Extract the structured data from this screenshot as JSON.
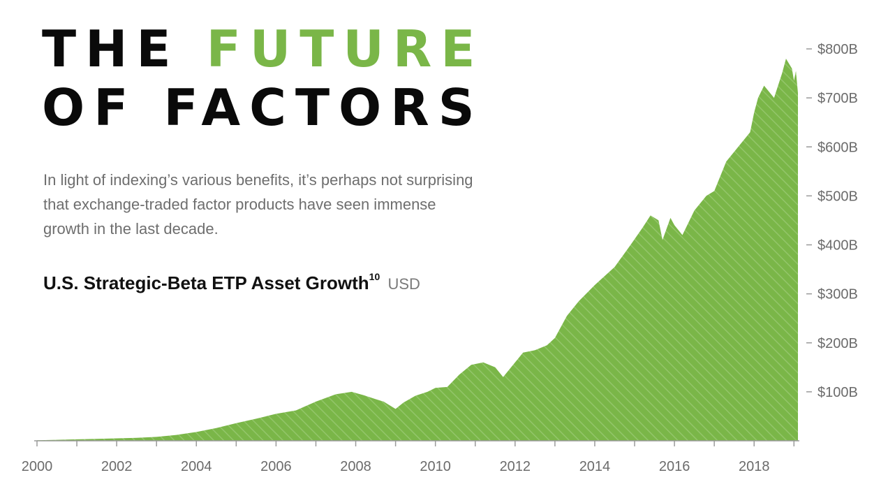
{
  "title": {
    "line1_prefix": "THE",
    "line1_accent": "FUTURE",
    "line2": "OF FACTORS"
  },
  "intro_text": "In light of indexing’s various benefits, it’s perhaps not surprising that exchange-traded factor products have seen immense growth in the last decade.",
  "chart_heading": {
    "text": "U.S. Strategic-Beta ETP Asset Growth",
    "superscript": "10",
    "unit": "USD"
  },
  "colors": {
    "accent": "#7ab648",
    "area_fill": "#7ab648",
    "area_stripe": "#93c56a",
    "title_text": "#0a0a0a",
    "axis": "#9a9a9a",
    "muted_text": "#6e6e6e"
  },
  "chart_data": {
    "type": "area",
    "title": "U.S. Strategic-Beta ETP Asset Growth",
    "xlabel": "",
    "ylabel": "",
    "xlim": [
      2000,
      2019.1
    ],
    "ylim": [
      0,
      800
    ],
    "x_ticks": [
      2000,
      2001,
      2002,
      2003,
      2004,
      2005,
      2006,
      2007,
      2008,
      2009,
      2010,
      2011,
      2012,
      2013,
      2014,
      2015,
      2016,
      2017,
      2018,
      2019
    ],
    "x_tick_labels": [
      "2000",
      "2002",
      "2004",
      "2006",
      "2008",
      "2010",
      "2012",
      "2014",
      "2016",
      "2018"
    ],
    "x_tick_label_values": [
      2000,
      2002,
      2004,
      2006,
      2008,
      2010,
      2012,
      2014,
      2016,
      2018
    ],
    "y_ticks": [
      100,
      200,
      300,
      400,
      500,
      600,
      700,
      800
    ],
    "y_tick_labels": [
      "$100B",
      "$200B",
      "$300B",
      "$400B",
      "$500B",
      "$600B",
      "$700B",
      "$800B"
    ],
    "grid": false,
    "series": [
      {
        "x": [
          2000.0,
          2000.5,
          2001.0,
          2001.5,
          2002.0,
          2002.5,
          2003.0,
          2003.5,
          2004.0,
          2004.5,
          2005.0,
          2005.5,
          2006.0,
          2006.5,
          2007.0,
          2007.5,
          2007.9,
          2008.2,
          2008.5,
          2008.7,
          2009.0,
          2009.2,
          2009.5,
          2009.8,
          2010.0,
          2010.3,
          2010.6,
          2010.9,
          2011.2,
          2011.5,
          2011.7,
          2011.9,
          2012.2,
          2012.5,
          2012.8,
          2013.0,
          2013.3,
          2013.6,
          2014.0,
          2014.5,
          2014.9,
          2015.2,
          2015.4,
          2015.6,
          2015.7,
          2015.9,
          2016.0,
          2016.2,
          2016.5,
          2016.8,
          2017.0,
          2017.3,
          2017.6,
          2017.9,
          2018.0,
          2018.1,
          2018.25,
          2018.5,
          2018.7,
          2018.8,
          2018.95,
          2019.0,
          2019.05,
          2019.1
        ],
        "values": [
          1,
          2,
          3,
          4,
          5,
          6,
          8,
          12,
          18,
          26,
          36,
          45,
          55,
          62,
          80,
          95,
          100,
          93,
          85,
          80,
          65,
          78,
          92,
          100,
          108,
          110,
          135,
          155,
          160,
          150,
          130,
          150,
          180,
          185,
          195,
          210,
          255,
          285,
          318,
          355,
          400,
          435,
          460,
          450,
          410,
          455,
          440,
          420,
          470,
          500,
          510,
          570,
          600,
          630,
          670,
          700,
          725,
          700,
          750,
          780,
          760,
          735,
          755,
          710
        ]
      }
    ]
  }
}
